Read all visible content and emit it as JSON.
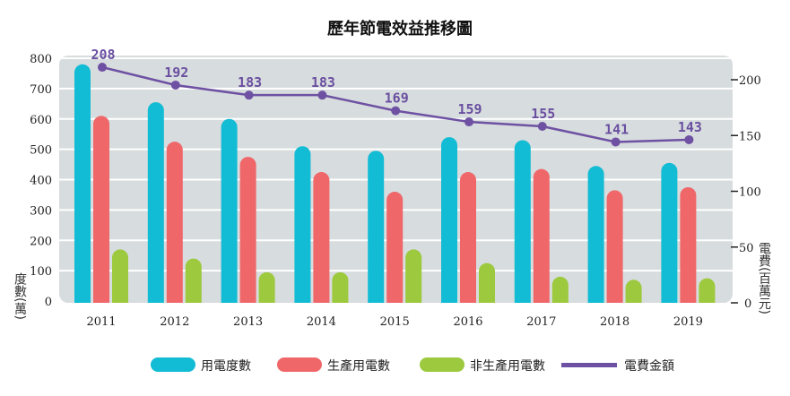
{
  "chart_data": {
    "type": "bar",
    "title": "歷年節電效益推移圖",
    "categories": [
      "2011",
      "2012",
      "2013",
      "2014",
      "2015",
      "2016",
      "2017",
      "2018",
      "2019"
    ],
    "ylabel": "度數(萬)",
    "y2label": "電費(百萬元)",
    "ylim": [
      0,
      800
    ],
    "y2lim": [
      0,
      200
    ],
    "yticks": [
      0,
      100,
      200,
      300,
      400,
      500,
      600,
      700,
      800
    ],
    "y2ticks": [
      0,
      50,
      100,
      150,
      200
    ],
    "grid": true,
    "legend_position": "bottom",
    "series": [
      {
        "name": "用電度數",
        "type": "bar",
        "axis": "left",
        "color": "#12bcd4",
        "values": [
          780,
          655,
          600,
          510,
          495,
          540,
          530,
          445,
          455
        ]
      },
      {
        "name": "生產用電數",
        "type": "bar",
        "axis": "left",
        "color": "#f0676a",
        "values": [
          610,
          525,
          475,
          425,
          360,
          425,
          435,
          365,
          375
        ]
      },
      {
        "name": "非生產用電數",
        "type": "bar",
        "axis": "left",
        "color": "#9cc93d",
        "values": [
          170,
          140,
          95,
          95,
          170,
          125,
          80,
          70,
          75
        ]
      },
      {
        "name": "電費金額",
        "type": "line",
        "axis": "right",
        "color": "#6e51a3",
        "values": [
          208,
          192,
          183,
          183,
          169,
          159,
          155,
          141,
          143
        ]
      }
    ]
  }
}
